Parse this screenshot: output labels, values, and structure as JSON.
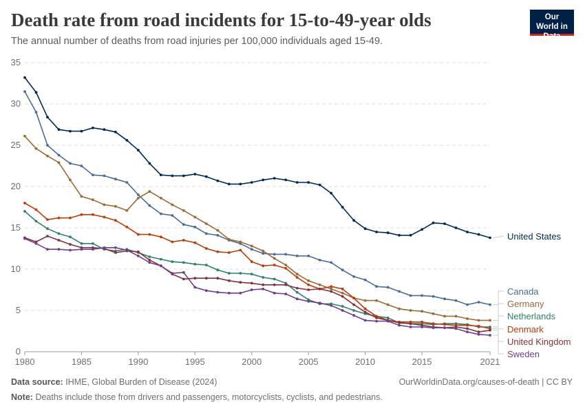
{
  "header": {
    "title": "Death rate from road incidents for 15-to-49-year olds",
    "subtitle": "The annual number of deaths from road injuries per 100,000 individuals aged 15-49.",
    "logo": "Our World in Data"
  },
  "footer": {
    "source_label": "Data source:",
    "source": "IHME, Global Burden of Disease (2024)",
    "url": "OurWorldinData.org/causes-of-death | CC BY",
    "note_label": "Note:",
    "note": "Deaths include those from drivers and passengers, motorcyclists, cyclists, and pedestrians."
  },
  "chart_data": {
    "type": "line",
    "xlim": [
      1980,
      2021
    ],
    "ylim": [
      0,
      35
    ],
    "yticks": [
      0,
      5,
      10,
      15,
      20,
      25,
      30,
      35
    ],
    "xticks": [
      1980,
      1985,
      1990,
      1995,
      2000,
      2005,
      2010,
      2015,
      2021
    ],
    "grid": "horizontal dashed",
    "legend": "right (line-end labels)",
    "x": [
      1980,
      1981,
      1982,
      1983,
      1984,
      1985,
      1986,
      1987,
      1988,
      1989,
      1990,
      1991,
      1992,
      1993,
      1994,
      1995,
      1996,
      1997,
      1998,
      1999,
      2000,
      2001,
      2002,
      2003,
      2004,
      2005,
      2006,
      2007,
      2008,
      2009,
      2010,
      2011,
      2012,
      2013,
      2014,
      2015,
      2016,
      2017,
      2018,
      2019,
      2020,
      2021
    ],
    "series": [
      {
        "name": "United States",
        "color": "#00295b",
        "values": [
          33.2,
          31.4,
          28.4,
          26.9,
          26.7,
          26.7,
          27.1,
          26.9,
          26.6,
          25.6,
          24.4,
          22.8,
          21.4,
          21.3,
          21.3,
          21.5,
          21.2,
          20.7,
          20.3,
          20.3,
          20.5,
          20.8,
          21.0,
          20.8,
          20.5,
          20.5,
          20.2,
          19.2,
          17.5,
          15.9,
          14.9,
          14.5,
          14.4,
          14.1,
          14.1,
          14.8,
          15.6,
          15.5,
          15.0,
          14.5,
          14.2,
          13.8
        ]
      },
      {
        "name": "Canada",
        "color": "#4c6a9c",
        "values": [
          31.5,
          29.0,
          25.0,
          23.8,
          22.8,
          22.5,
          21.4,
          21.3,
          20.9,
          20.5,
          19.0,
          17.7,
          16.7,
          16.5,
          15.4,
          15.1,
          14.3,
          14.1,
          13.5,
          13.1,
          12.4,
          11.9,
          11.8,
          11.8,
          11.6,
          11.6,
          11.1,
          10.8,
          9.9,
          9.1,
          8.7,
          7.9,
          7.8,
          7.3,
          6.8,
          6.8,
          6.7,
          6.4,
          6.2,
          5.7,
          6.0,
          5.7
        ]
      },
      {
        "name": "Germany",
        "color": "#9a6b36",
        "values": [
          26.1,
          24.6,
          23.7,
          22.9,
          20.8,
          18.8,
          18.4,
          17.8,
          17.6,
          17.1,
          18.6,
          19.4,
          18.6,
          17.8,
          17.1,
          16.3,
          15.5,
          14.7,
          13.6,
          13.3,
          12.8,
          12.2,
          11.3,
          10.5,
          9.4,
          8.6,
          8.1,
          7.6,
          7.1,
          6.5,
          6.2,
          6.2,
          5.7,
          5.2,
          5.0,
          4.9,
          4.6,
          4.3,
          4.3,
          4.0,
          3.8,
          3.8
        ]
      },
      {
        "name": "Netherlands",
        "color": "#2c8465",
        "values": [
          17.0,
          15.8,
          14.9,
          14.3,
          13.9,
          13.1,
          13.1,
          12.4,
          12.2,
          12.4,
          12.0,
          11.5,
          11.2,
          10.9,
          10.8,
          10.6,
          10.5,
          9.9,
          9.5,
          9.5,
          9.4,
          9.0,
          8.8,
          8.3,
          7.2,
          6.3,
          5.8,
          5.8,
          5.5,
          5.0,
          4.6,
          4.3,
          4.1,
          3.5,
          3.4,
          3.4,
          3.3,
          3.4,
          3.4,
          3.3,
          3.0,
          3.0
        ]
      },
      {
        "name": "Denmark",
        "color": "#be3b08",
        "values": [
          18.0,
          17.2,
          16.0,
          16.2,
          16.2,
          16.6,
          16.6,
          16.3,
          15.9,
          15.1,
          14.2,
          14.2,
          13.9,
          13.3,
          13.5,
          13.2,
          12.5,
          12.1,
          12.0,
          12.3,
          10.9,
          10.4,
          10.5,
          10.1,
          9.0,
          8.1,
          7.6,
          7.9,
          7.6,
          6.5,
          5.2,
          4.3,
          3.8,
          3.6,
          3.6,
          3.6,
          3.4,
          3.3,
          3.2,
          3.2,
          3.1,
          2.8
        ]
      },
      {
        "name": "United Kingdom",
        "color": "#883039",
        "values": [
          13.8,
          13.3,
          14.0,
          13.5,
          13.0,
          12.6,
          12.6,
          12.5,
          12.0,
          12.2,
          12.1,
          11.1,
          10.4,
          9.4,
          8.8,
          8.9,
          8.9,
          8.9,
          8.6,
          8.4,
          8.3,
          8.1,
          8.1,
          8.1,
          7.7,
          7.5,
          7.6,
          7.3,
          6.7,
          5.7,
          4.8,
          4.1,
          3.8,
          3.5,
          3.4,
          3.2,
          3.0,
          2.9,
          3.0,
          2.8,
          2.4,
          2.6
        ]
      },
      {
        "name": "Sweden",
        "color": "#6d3e91",
        "values": [
          13.7,
          13.1,
          12.4,
          12.4,
          12.3,
          12.4,
          12.4,
          12.6,
          12.6,
          12.3,
          11.6,
          10.8,
          10.4,
          9.5,
          9.6,
          7.8,
          7.4,
          7.2,
          7.1,
          7.1,
          7.5,
          7.6,
          7.1,
          7.0,
          6.4,
          6.1,
          5.9,
          5.6,
          5.0,
          4.4,
          3.8,
          3.7,
          3.7,
          3.2,
          3.0,
          3.0,
          2.9,
          2.9,
          2.8,
          2.4,
          2.1,
          2.0
        ]
      }
    ]
  }
}
